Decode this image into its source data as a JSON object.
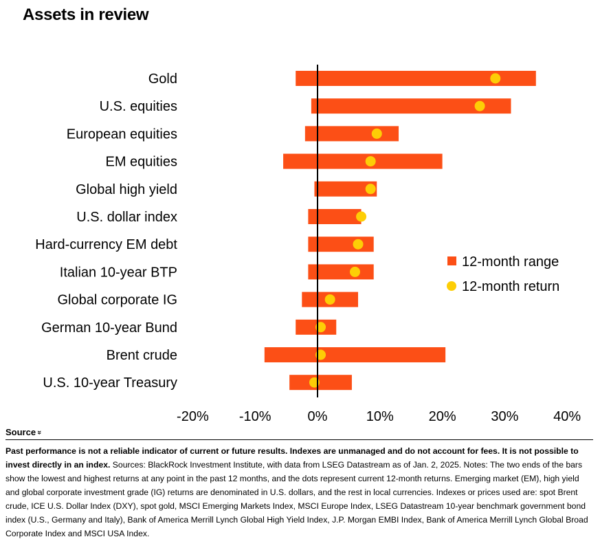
{
  "title": "Assets in review",
  "chart_data": {
    "type": "range-dot",
    "categories": [
      "Gold",
      "U.S. equities",
      "European equities",
      "EM equities",
      "Global high yield",
      "U.S. dollar index",
      "Hard-currency EM debt",
      "Italian 10-year BTP",
      "Global corporate IG",
      "German 10-year Bund",
      "Brent crude",
      "U.S. 10-year Treasury"
    ],
    "range_low": [
      -3.5,
      -1.0,
      -2.0,
      -5.5,
      -0.5,
      -1.5,
      -1.5,
      -1.5,
      -2.5,
      -3.5,
      -8.5,
      -4.5
    ],
    "range_high": [
      35.0,
      31.0,
      13.0,
      20.0,
      9.5,
      7.0,
      9.0,
      9.0,
      6.5,
      3.0,
      20.5,
      5.5
    ],
    "returns": [
      28.5,
      26.0,
      9.5,
      8.5,
      8.5,
      7.0,
      6.5,
      6.0,
      2.0,
      0.5,
      0.5,
      -0.5
    ],
    "xlim": [
      -23,
      42
    ],
    "x_ticks": [
      -20,
      -10,
      0,
      10,
      20,
      30,
      40
    ],
    "x_tick_labels": [
      "-20%",
      "-10%",
      "0%",
      "10%",
      "20%",
      "30%",
      "40%"
    ],
    "legend": [
      {
        "label": "12-month range",
        "marker": "square"
      },
      {
        "label": "12-month return",
        "marker": "dot"
      }
    ],
    "legend_position": "right",
    "grid": false
  },
  "colors": {
    "range": "#fc4f16",
    "dot": "#fdce06",
    "axis": "#000000"
  },
  "source": {
    "toggle_label": "Source",
    "toggle_icon": "double-chevron-down-icon",
    "bold_text": "Past performance is not a reliable indicator of current or future results. Indexes are unmanaged and do not account for fees. It is not possible to invest directly in an index.",
    "body_text": " Sources: BlackRock Investment Institute, with data from LSEG Datastream as of Jan. 2, 2025. Notes: The two ends of the bars show the lowest and highest returns at any point in the past 12 months, and the dots represent current 12-month returns. Emerging market (EM), high yield and global corporate investment grade (IG) returns are denominated in U.S. dollars, and the rest in local currencies. Indexes or prices used are: spot Brent crude, ICE U.S. Dollar Index (DXY), spot gold, MSCI Emerging Markets Index, MSCI Europe Index, LSEG Datastream 10-year benchmark government bond index (U.S., Germany and Italy), Bank of America Merrill Lynch Global High Yield Index, J.P. Morgan EMBI Index, Bank of America Merrill Lynch Global Broad Corporate Index and MSCI USA Index."
  }
}
